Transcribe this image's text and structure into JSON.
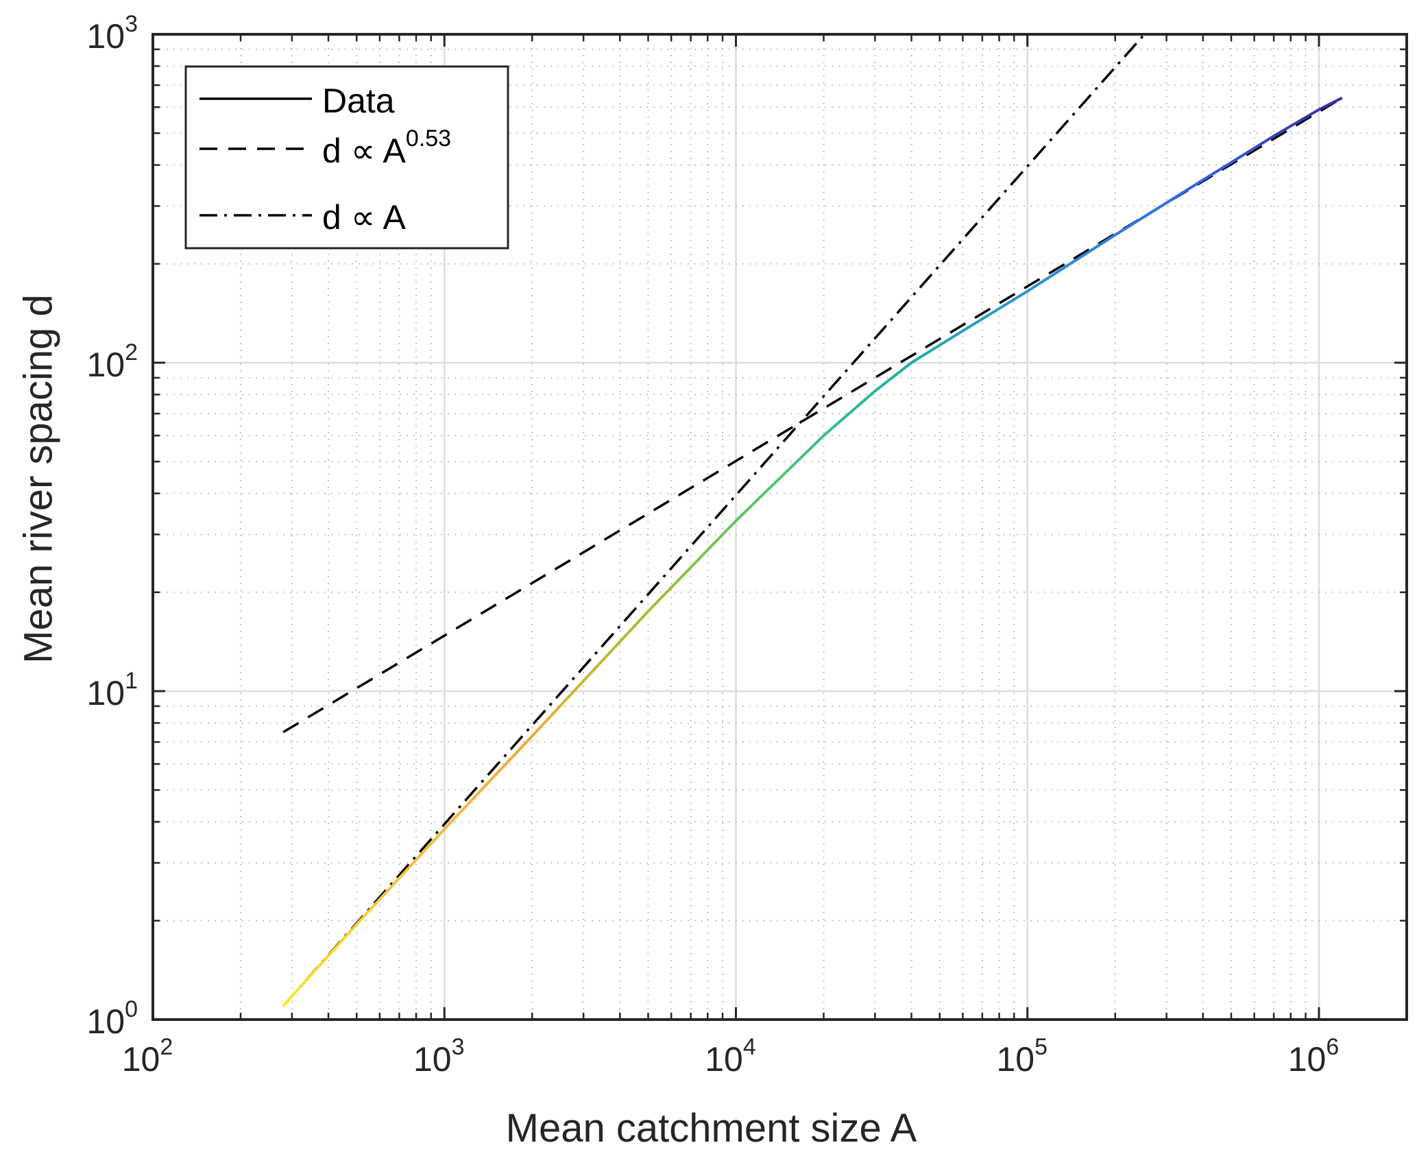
{
  "chart_data": {
    "type": "line",
    "xscale": "log",
    "yscale": "log",
    "xlabel": "Mean catchment size A",
    "ylabel": "Mean river spacing d",
    "xlim": [
      100,
      2000000
    ],
    "ylim": [
      1,
      1000
    ],
    "grid": true,
    "legend_position": "top-left",
    "x_ticks": [
      {
        "value": 100,
        "base": "10",
        "exp": "2"
      },
      {
        "value": 1000,
        "base": "10",
        "exp": "3"
      },
      {
        "value": 10000,
        "base": "10",
        "exp": "4"
      },
      {
        "value": 100000,
        "base": "10",
        "exp": "5"
      },
      {
        "value": 1000000,
        "base": "10",
        "exp": "6"
      }
    ],
    "y_ticks": [
      {
        "value": 1,
        "base": "10",
        "exp": "0"
      },
      {
        "value": 10,
        "base": "10",
        "exp": "1"
      },
      {
        "value": 100,
        "base": "10",
        "exp": "2"
      },
      {
        "value": 1000,
        "base": "10",
        "exp": "3"
      }
    ],
    "series": [
      {
        "name": "Data",
        "style": "solid",
        "color_gradient": [
          "#f9e721",
          "#f5c142",
          "#f5a83a",
          "#a6bf33",
          "#56c66a",
          "#23b1a0",
          "#2d8ed8",
          "#3168e3",
          "#3a2e9a"
        ],
        "x": [
          280,
          500,
          1000,
          2000,
          5000,
          10000,
          20000,
          30000,
          40000,
          60000,
          100000,
          200000,
          400000,
          700000,
          1000000,
          1200000
        ],
        "y": [
          1.1,
          1.95,
          3.8,
          7.3,
          17.5,
          33,
          60,
          82,
          100,
          125,
          165,
          245,
          360,
          490,
          590,
          640
        ]
      },
      {
        "name": "d ∝ A",
        "name_lead": "d ∝ A",
        "name_exp": "0.53",
        "style": "dashed",
        "color": "#000000",
        "x": [
          280,
          1200000
        ],
        "y": [
          7.5,
          640
        ]
      },
      {
        "name": "d ∝ A",
        "style": "dashdot",
        "color": "#000000",
        "x": [
          280,
          252000
        ],
        "y": [
          1.1,
          1000
        ]
      }
    ]
  }
}
